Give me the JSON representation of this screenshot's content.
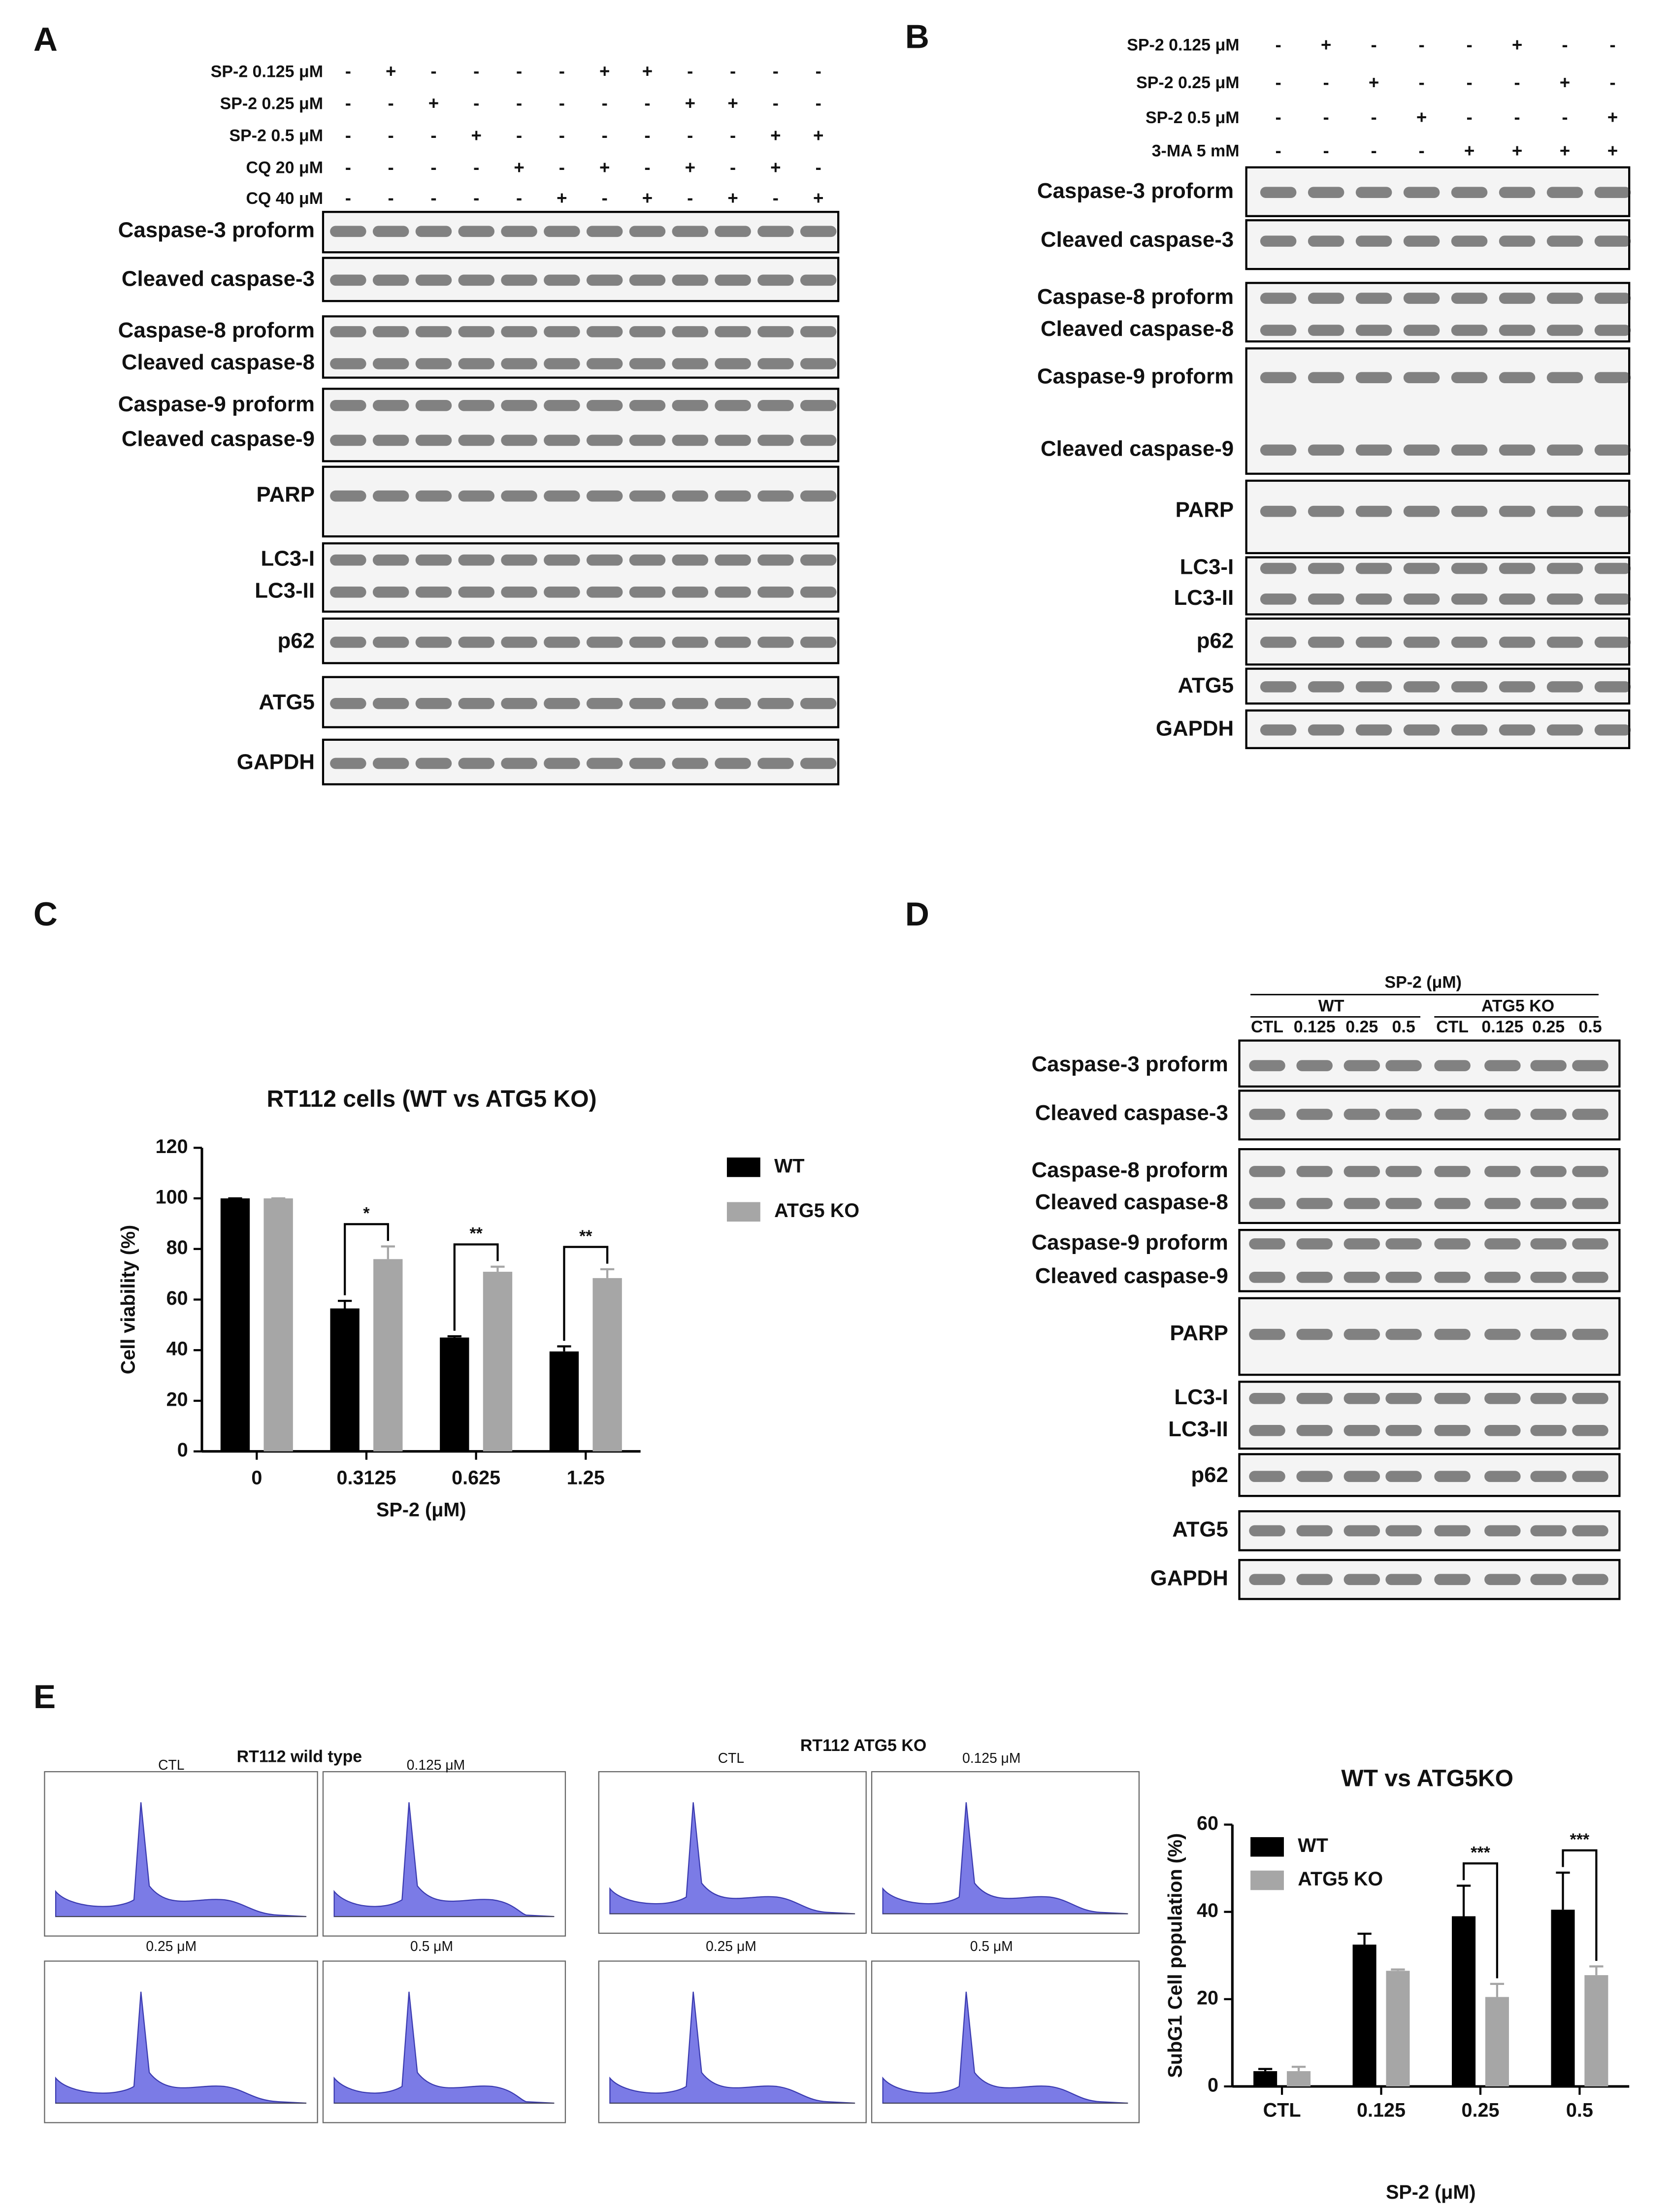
{
  "panels": {
    "A": {
      "label": "A",
      "conditions": [
        {
          "name": "SP-2 0.125 μM",
          "signs": [
            "-",
            "+",
            "-",
            "-",
            "-",
            "-",
            "+",
            "+",
            "-",
            "-",
            "-",
            "-"
          ]
        },
        {
          "name": "SP-2 0.25 μM",
          "signs": [
            "-",
            "-",
            "+",
            "-",
            "-",
            "-",
            "-",
            "-",
            "+",
            "+",
            "-",
            "-"
          ]
        },
        {
          "name": "SP-2 0.5 μM",
          "signs": [
            "-",
            "-",
            "-",
            "+",
            "-",
            "-",
            "-",
            "-",
            "-",
            "-",
            "+",
            "+"
          ]
        },
        {
          "name": "CQ 20 μM",
          "signs": [
            "-",
            "-",
            "-",
            "-",
            "+",
            "-",
            "+",
            "-",
            "+",
            "-",
            "+",
            "-"
          ]
        },
        {
          "name": "CQ 40 μM",
          "signs": [
            "-",
            "-",
            "-",
            "-",
            "-",
            "+",
            "-",
            "+",
            "-",
            "+",
            "-",
            "+"
          ]
        }
      ],
      "rows": [
        [
          "Caspase-3 proform"
        ],
        [
          "Cleaved caspase-3"
        ],
        [
          "Caspase-8 proform",
          "Cleaved caspase-8"
        ],
        [
          "Caspase-9 proform",
          "Cleaved caspase-9"
        ],
        [
          "PARP"
        ],
        [
          "LC3-I",
          "LC3-II"
        ],
        [
          "p62"
        ],
        [
          "ATG5"
        ],
        [
          "GAPDH"
        ]
      ]
    },
    "B": {
      "label": "B",
      "conditions": [
        {
          "name": "SP-2 0.125 μM",
          "signs": [
            "-",
            "+",
            "-",
            "-",
            "-",
            "+",
            "-",
            "-"
          ]
        },
        {
          "name": "SP-2 0.25 μM",
          "signs": [
            "-",
            "-",
            "+",
            "-",
            "-",
            "-",
            "+",
            "-"
          ]
        },
        {
          "name": "SP-2 0.5 μM",
          "signs": [
            "-",
            "-",
            "-",
            "+",
            "-",
            "-",
            "-",
            "+"
          ]
        },
        {
          "name": "3-MA 5 mM",
          "signs": [
            "-",
            "-",
            "-",
            "-",
            "+",
            "+",
            "+",
            "+"
          ]
        }
      ],
      "rows": [
        [
          "Caspase-3 proform"
        ],
        [
          "Cleaved caspase-3"
        ],
        [
          "Caspase-8 proform",
          "Cleaved caspase-8"
        ],
        [
          "Caspase-9 proform",
          "Cleaved caspase-9"
        ],
        [
          "PARP"
        ],
        [
          "LC3-I",
          "LC3-II"
        ],
        [
          "p62"
        ],
        [
          "ATG5"
        ],
        [
          "GAPDH"
        ]
      ]
    },
    "C": {
      "label": "C"
    },
    "D": {
      "label": "D",
      "header": "SP-2 (μM)",
      "groups": [
        "WT",
        "ATG5 KO"
      ],
      "lanes": [
        "CTL",
        "0.125",
        "0.25",
        "0.5",
        "CTL",
        "0.125",
        "0.25",
        "0.5"
      ],
      "rows": [
        [
          "Caspase-3 proform"
        ],
        [
          "Cleaved caspase-3"
        ],
        [
          "Caspase-8 proform",
          "Cleaved caspase-8"
        ],
        [
          "Caspase-9 proform",
          "Cleaved caspase-9"
        ],
        [
          "PARP"
        ],
        [
          "LC3-I",
          "LC3-II"
        ],
        [
          "p62"
        ],
        [
          "ATG5"
        ],
        [
          "GAPDH"
        ]
      ]
    },
    "E": {
      "label": "E",
      "groups": [
        {
          "title": "RT112 wild type",
          "captions": [
            "CTL",
            "0.125 μM",
            "0.25 μM",
            "0.5 μM"
          ]
        },
        {
          "title": "RT112 ATG5 KO",
          "captions": [
            "CTL",
            "0.125 μM",
            "0.25 μM",
            "0.5 μM"
          ]
        }
      ]
    }
  },
  "chart_data": [
    {
      "type": "bar",
      "title": "RT112 cells (WT vs ATG5 KO)",
      "x_label": "SP-2 (μM)",
      "y_label": "Cell viability (%)",
      "categories": [
        "0",
        "0.3125",
        "0.625",
        "1.25"
      ],
      "series": [
        {
          "name": "WT",
          "color": "#000000",
          "values": [
            100,
            56.5,
            45,
            39.5
          ],
          "errors": [
            0,
            3,
            0.5,
            2
          ]
        },
        {
          "name": "ATG5 KO",
          "color": "#a6a6a6",
          "values": [
            100,
            76,
            71,
            68.5
          ],
          "errors": [
            0,
            5,
            2,
            3.5
          ]
        }
      ],
      "significance": [
        null,
        "*",
        "**",
        "**"
      ],
      "ylim": [
        0,
        120
      ],
      "yticks": [
        0,
        20,
        40,
        60,
        80,
        100,
        120
      ],
      "grid": false,
      "legend": "right"
    },
    {
      "type": "bar",
      "title": "WT vs ATG5KO",
      "x_label": "SP-2 (μM)",
      "y_label": "SubG1 Cell population (%)",
      "categories": [
        "CTL",
        "0.125",
        "0.25",
        "0.5"
      ],
      "series": [
        {
          "name": "WT",
          "color": "#000000",
          "values": [
            3.5,
            32.5,
            39,
            40.5
          ],
          "errors": [
            0.5,
            2.5,
            7,
            8.5
          ]
        },
        {
          "name": "ATG5 KO",
          "color": "#a6a6a6",
          "values": [
            3.5,
            26.5,
            20.5,
            25.5
          ],
          "errors": [
            1,
            0.3,
            3,
            2
          ]
        }
      ],
      "significance": [
        null,
        null,
        "***",
        "***"
      ],
      "ylim": [
        0,
        60
      ],
      "yticks": [
        0,
        20,
        40,
        60
      ],
      "grid": false,
      "legend": "top-left"
    }
  ]
}
